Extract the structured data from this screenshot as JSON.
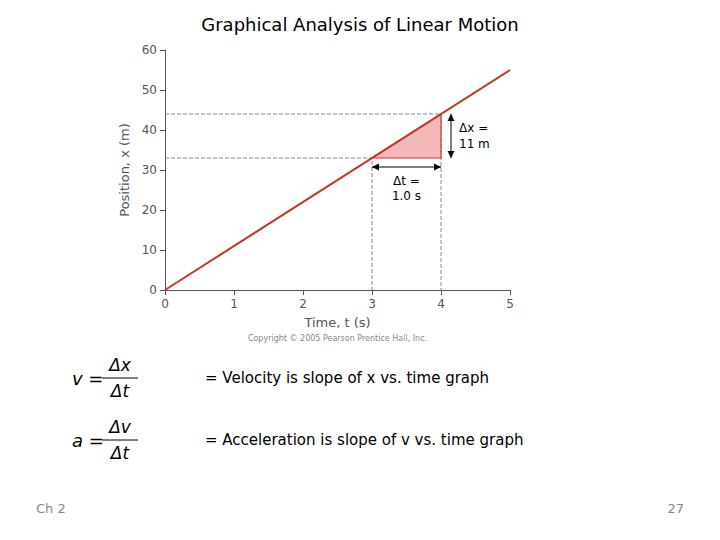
{
  "chart_data": {
    "type": "line",
    "title": "Graphical Analysis of Linear Motion",
    "xlabel": "Time, t (s)",
    "ylabel": "Position, x (m)",
    "xlim": [
      0,
      5.0
    ],
    "ylim": [
      0,
      60
    ],
    "xticks": [
      0,
      1,
      2,
      3,
      4,
      5
    ],
    "yticks": [
      0,
      10,
      20,
      30,
      40,
      50,
      60
    ],
    "grid": false,
    "series": [
      {
        "type": "line",
        "x": [
          0,
          5.0
        ],
        "values": [
          0,
          55
        ],
        "color": "#c0392b",
        "line_style": "solid"
      },
      {
        "type": "line",
        "x": [
          0,
          3.0,
          3.0
        ],
        "values": [
          33,
          33,
          0
        ],
        "color": "#888888",
        "line_style": "dashed"
      },
      {
        "type": "line",
        "x": [
          0,
          4.0,
          4.0
        ],
        "values": [
          44,
          44,
          0
        ],
        "color": "#888888",
        "line_style": "dashed"
      },
      {
        "type": "polygon",
        "x": [
          3.0,
          4.0,
          4.0
        ],
        "values": [
          33,
          33,
          44
        ],
        "color": "#c0392b",
        "fill_color": "#f4b8b8"
      }
    ],
    "delta_x_label": [
      "Δx =",
      "11 m"
    ],
    "delta_t_label": [
      "Δt =",
      "1.0 s"
    ],
    "copyright_text": "Copyright © 2005 Pearson Prentice Hall, Inc.",
    "equations": [
      {
        "lhs": "v =",
        "numerator": "Δx",
        "denominator": "Δt",
        "text": "= Velocity is slope of x vs. time graph"
      },
      {
        "lhs": "a =",
        "numerator": "Δv",
        "denominator": "Δt",
        "text": "= Acceleration is slope of v vs. time graph"
      }
    ],
    "footer_left": "Ch 2",
    "footer_right": "27"
  }
}
